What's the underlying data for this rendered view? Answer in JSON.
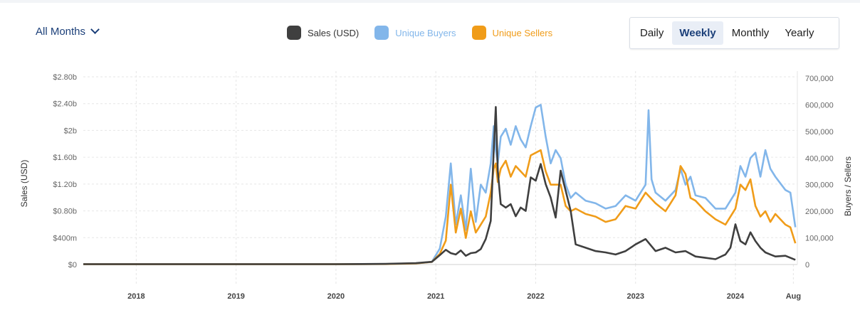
{
  "controls": {
    "range_label": "All Months",
    "tabs": [
      "Daily",
      "Weekly",
      "Monthly",
      "Yearly"
    ],
    "active_tab": "Weekly"
  },
  "colors": {
    "sales": "#3f3f3f",
    "buyers": "#82b6ea",
    "sellers": "#f09c19"
  },
  "chart_data": {
    "type": "line",
    "left_axis": {
      "title": "Sales (USD)",
      "ticks": [
        "$0",
        "$400m",
        "$0.80b",
        "$1.20b",
        "$1.60b",
        "$2b",
        "$2.40b",
        "$2.80b"
      ],
      "tick_values": [
        0,
        400000000,
        800000000,
        1200000000,
        1600000000,
        2000000000,
        2400000000,
        2800000000
      ],
      "ylim": [
        0,
        2800000000
      ]
    },
    "right_axis": {
      "title": "Buyers / Sellers",
      "ticks": [
        "0",
        "100,000",
        "200,000",
        "300,000",
        "400,000",
        "500,000",
        "600,000",
        "700,000"
      ],
      "tick_values": [
        0,
        100000,
        200000,
        300000,
        400000,
        500000,
        600000,
        700000
      ],
      "ylim": [
        0,
        700000
      ]
    },
    "x_axis": {
      "ticks": [
        "2018",
        "2019",
        "2020",
        "2021",
        "2022",
        "2023",
        "2024",
        "Aug"
      ],
      "tick_values": [
        2018.0,
        2019.0,
        2020.0,
        2021.0,
        2022.0,
        2023.0,
        2024.0,
        2024.58
      ],
      "xlim": [
        2017.47,
        2024.62
      ]
    },
    "grid": true,
    "legend_position": "top-center",
    "series": [
      {
        "name": "Sales (USD)",
        "axis": "left",
        "x": [
          2017.47,
          2018.0,
          2019.0,
          2020.0,
          2020.5,
          2020.8,
          2020.96,
          2021.04,
          2021.1,
          2021.15,
          2021.2,
          2021.25,
          2021.3,
          2021.35,
          2021.4,
          2021.45,
          2021.5,
          2021.55,
          2021.58,
          2021.6,
          2021.62,
          2021.65,
          2021.7,
          2021.75,
          2021.8,
          2021.85,
          2021.9,
          2021.95,
          2022.0,
          2022.05,
          2022.1,
          2022.15,
          2022.2,
          2022.25,
          2022.3,
          2022.35,
          2022.4,
          2022.5,
          2022.6,
          2022.7,
          2022.8,
          2022.9,
          2023.0,
          2023.1,
          2023.2,
          2023.3,
          2023.4,
          2023.5,
          2023.6,
          2023.7,
          2023.8,
          2023.9,
          2023.95,
          2024.0,
          2024.05,
          2024.1,
          2024.15,
          2024.2,
          2024.25,
          2024.3,
          2024.35,
          2024.4,
          2024.5,
          2024.6
        ],
        "y": [
          5000000,
          5000000,
          5000000,
          5000000,
          10000000,
          20000000,
          40000000,
          140000000,
          220000000,
          170000000,
          150000000,
          210000000,
          130000000,
          170000000,
          180000000,
          230000000,
          380000000,
          650000000,
          1700000000,
          2350000000,
          1400000000,
          900000000,
          850000000,
          900000000,
          720000000,
          850000000,
          800000000,
          1300000000,
          1250000000,
          1500000000,
          1200000000,
          1000000000,
          700000000,
          1400000000,
          1100000000,
          800000000,
          300000000,
          250000000,
          200000000,
          180000000,
          150000000,
          200000000,
          300000000,
          380000000,
          200000000,
          250000000,
          180000000,
          200000000,
          120000000,
          100000000,
          80000000,
          150000000,
          250000000,
          600000000,
          350000000,
          300000000,
          480000000,
          350000000,
          250000000,
          180000000,
          150000000,
          120000000,
          130000000,
          70000000
        ]
      },
      {
        "name": "Unique Buyers",
        "axis": "right",
        "x": [
          2017.47,
          2018.0,
          2019.0,
          2020.0,
          2020.5,
          2020.8,
          2020.96,
          2021.04,
          2021.1,
          2021.15,
          2021.2,
          2021.25,
          2021.3,
          2021.35,
          2021.4,
          2021.45,
          2021.5,
          2021.55,
          2021.58,
          2021.6,
          2021.62,
          2021.65,
          2021.7,
          2021.75,
          2021.8,
          2021.85,
          2021.9,
          2021.95,
          2022.0,
          2022.05,
          2022.1,
          2022.15,
          2022.2,
          2022.25,
          2022.3,
          2022.35,
          2022.4,
          2022.5,
          2022.6,
          2022.7,
          2022.8,
          2022.9,
          2023.0,
          2023.1,
          2023.13,
          2023.16,
          2023.2,
          2023.3,
          2023.4,
          2023.45,
          2023.5,
          2023.55,
          2023.6,
          2023.7,
          2023.8,
          2023.9,
          2024.0,
          2024.05,
          2024.1,
          2024.15,
          2024.2,
          2024.25,
          2024.3,
          2024.35,
          2024.4,
          2024.5,
          2024.55,
          2024.6
        ],
        "y": [
          1000,
          1000,
          1000,
          1000,
          2000,
          4000,
          10000,
          60000,
          180000,
          380000,
          150000,
          260000,
          130000,
          360000,
          160000,
          300000,
          270000,
          380000,
          520000,
          430000,
          380000,
          480000,
          510000,
          450000,
          520000,
          470000,
          440000,
          520000,
          590000,
          600000,
          480000,
          380000,
          430000,
          400000,
          300000,
          250000,
          270000,
          240000,
          230000,
          210000,
          220000,
          260000,
          240000,
          300000,
          580000,
          320000,
          270000,
          240000,
          280000,
          360000,
          300000,
          330000,
          260000,
          250000,
          210000,
          210000,
          270000,
          370000,
          330000,
          400000,
          420000,
          330000,
          430000,
          360000,
          330000,
          280000,
          270000,
          140000
        ]
      },
      {
        "name": "Unique Sellers",
        "axis": "right",
        "x": [
          2017.47,
          2018.0,
          2019.0,
          2020.0,
          2020.5,
          2020.8,
          2020.96,
          2021.04,
          2021.1,
          2021.15,
          2021.2,
          2021.25,
          2021.3,
          2021.35,
          2021.4,
          2021.45,
          2021.5,
          2021.55,
          2021.58,
          2021.6,
          2021.62,
          2021.65,
          2021.7,
          2021.75,
          2021.8,
          2021.85,
          2021.9,
          2021.95,
          2022.0,
          2022.05,
          2022.1,
          2022.15,
          2022.2,
          2022.25,
          2022.3,
          2022.35,
          2022.4,
          2022.5,
          2022.6,
          2022.7,
          2022.8,
          2022.9,
          2023.0,
          2023.1,
          2023.2,
          2023.3,
          2023.4,
          2023.45,
          2023.5,
          2023.55,
          2023.6,
          2023.7,
          2023.8,
          2023.9,
          2024.0,
          2024.05,
          2024.1,
          2024.15,
          2024.2,
          2024.25,
          2024.3,
          2024.35,
          2024.4,
          2024.5,
          2024.55,
          2024.6
        ],
        "y": [
          1000,
          1000,
          1000,
          1000,
          2000,
          4000,
          10000,
          40000,
          90000,
          300000,
          120000,
          210000,
          100000,
          200000,
          120000,
          150000,
          180000,
          270000,
          360000,
          380000,
          310000,
          360000,
          390000,
          330000,
          370000,
          350000,
          330000,
          410000,
          420000,
          430000,
          350000,
          300000,
          300000,
          300000,
          220000,
          200000,
          210000,
          190000,
          180000,
          160000,
          170000,
          220000,
          210000,
          270000,
          230000,
          200000,
          260000,
          370000,
          340000,
          250000,
          240000,
          200000,
          170000,
          150000,
          210000,
          300000,
          280000,
          320000,
          220000,
          180000,
          200000,
          160000,
          190000,
          150000,
          140000,
          80000
        ]
      }
    ]
  }
}
